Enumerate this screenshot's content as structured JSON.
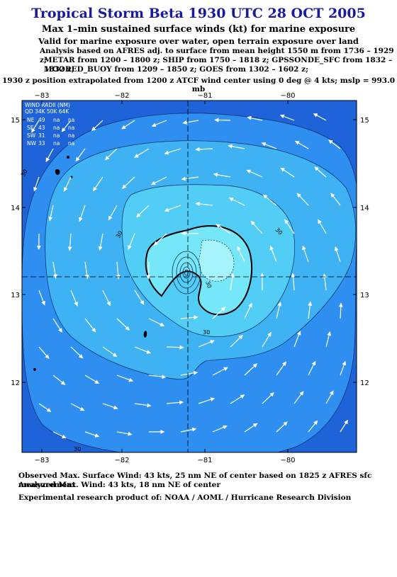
{
  "header": {
    "title": "Tropical Storm Beta 1930 UTC 28 OCT 2005",
    "subtitle": "Max 1–min sustained surface winds (kt) for marine exposure",
    "subtitle2": "Valid for marine exposure over water, open terrain exposure over land"
  },
  "analysis": [
    "Analysis based on  AFRES adj. to surface from mean height 1550 m from 1736 – 1929 z;",
    "METAR from 1200 – 1800 z;  SHIP from 1750 – 1818 z;  GPSSONDE_SFC from 1832 – 1832 z;",
    "MOORED_BUOY from 1209 – 1850 z;  GOES from 1302 – 1602 z;"
  ],
  "position_note": "1930 z position extrapolated from 1200 z ATCF wind center using 0 deg @ 4 kts; mslp = 993.0 mb",
  "axes": {
    "lon_ticks": [
      "−83",
      "−82",
      "−81",
      "−80"
    ],
    "lat_ticks": [
      "15",
      "14",
      "13",
      "12"
    ]
  },
  "wind_radii": {
    "title": "WIND RADII (NM)",
    "header": "QD  34K  50K  64K",
    "rows": [
      {
        "qd": "NE",
        "k34": "49",
        "k50": "na",
        "k64": "na"
      },
      {
        "qd": "SE",
        "k34": "43",
        "k50": "na",
        "k64": "na"
      },
      {
        "qd": "SW",
        "k34": "31",
        "k50": "na",
        "k64": "na"
      },
      {
        "qd": "NW",
        "k34": "33",
        "k50": "na",
        "k64": "na"
      }
    ]
  },
  "contour_labels": [
    "30",
    "30",
    "30",
    "30",
    "30",
    "30"
  ],
  "footer": {
    "observed": "Observed Max. Surface Wind: 43 kts, 25 nm NE of center based on 1825 z AFRES sfc measurement",
    "analyzed": "Analyzed Max. Wind: 43 kts, 18 nm NE of center",
    "credit": "Experimental research product of:  NOAA / AOML / Hurricane Research Division"
  },
  "colors": {
    "outer": "#1f63d9",
    "band1": "#2e8ff0",
    "band2": "#3fb2f3",
    "band3": "#52cdf5",
    "band4": "#76e6f9",
    "band5": "#a6f3fb",
    "title": "#1a1aa0"
  }
}
